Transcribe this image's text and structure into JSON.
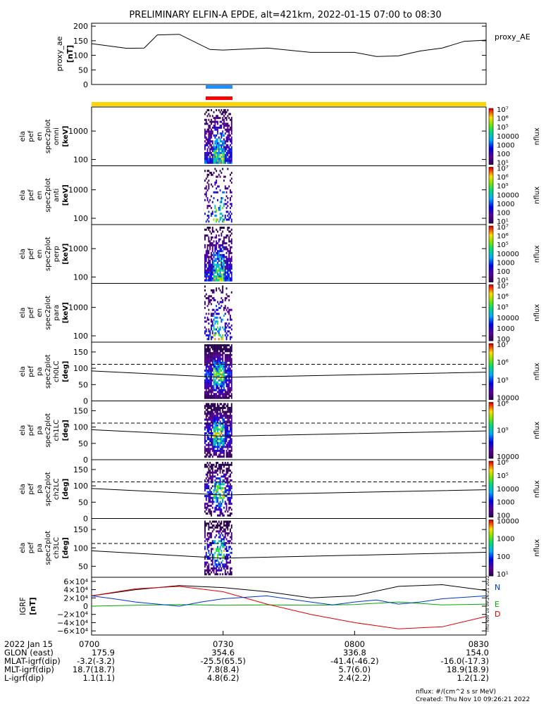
{
  "title": "PRELIMINARY ELFIN-A EPDE, alt=421km, 2022-01-15 07:00 to 08:30",
  "chart_data": {
    "type": "heatmap",
    "time_range": [
      "07:00",
      "08:30"
    ],
    "proxy_ae": {
      "ylabel": [
        "proxy_ae",
        "[nT]"
      ],
      "yticks": [
        0,
        50,
        100,
        150,
        200
      ],
      "ylim": [
        0,
        210
      ],
      "legend": "proxy_AE",
      "t_minutes": [
        0,
        8,
        12,
        15,
        20,
        27,
        30,
        40,
        50,
        60,
        65,
        70,
        75,
        80,
        85,
        90
      ],
      "values": [
        140,
        124,
        125,
        170,
        172,
        120,
        118,
        125,
        110,
        110,
        96,
        98,
        115,
        125,
        148,
        152
      ]
    },
    "science_zone_bars": [
      "#1e90ff",
      "#ff0000"
    ],
    "coverage_bar_color": "#ffd700",
    "spectrograms": [
      {
        "ylabel": [
          "ela",
          "pef",
          "en",
          "spec2plot",
          "omni",
          "[keV]"
        ],
        "scale": "log",
        "yticks": [
          100,
          1000
        ],
        "ylim": [
          60,
          7000
        ],
        "cbar_ticks": [
          10,
          100,
          1000,
          10000,
          100000,
          1000000,
          10000000
        ],
        "cbar_label": "nflux"
      },
      {
        "ylabel": [
          "ela",
          "pef",
          "en",
          "spec2plot",
          "anti",
          "[keV]"
        ],
        "scale": "log",
        "yticks": [
          100,
          1000
        ],
        "ylim": [
          60,
          7000
        ],
        "cbar_ticks": [
          10,
          100,
          1000,
          10000,
          100000,
          1000000,
          10000000
        ],
        "cbar_label": "nflux"
      },
      {
        "ylabel": [
          "ela",
          "pef",
          "en",
          "spec2plot",
          "perp",
          "[keV]"
        ],
        "scale": "log",
        "yticks": [
          100,
          1000
        ],
        "ylim": [
          60,
          7000
        ],
        "cbar_ticks": [
          10,
          100,
          1000,
          10000,
          100000,
          1000000,
          10000000
        ],
        "cbar_label": "nflux"
      },
      {
        "ylabel": [
          "ela",
          "pef",
          "en",
          "spec2plot",
          "para",
          "[keV]"
        ],
        "scale": "log",
        "yticks": [
          100,
          1000
        ],
        "ylim": [
          60,
          7000
        ],
        "cbar_ticks": [
          100,
          1000,
          10000,
          100000,
          1000000,
          10000000
        ],
        "cbar_label": "nflux"
      },
      {
        "ylabel": [
          "ela",
          "pef",
          "pa",
          "spec2plot",
          "ch0LC",
          "[deg]"
        ],
        "scale": "linear",
        "yticks": [
          0,
          50,
          100,
          150
        ],
        "ylim": [
          0,
          180
        ],
        "cbar_ticks": [
          10000,
          100000,
          1000000,
          10000000
        ],
        "cbar_label": "nflux",
        "solid_line": [
          92,
          72,
          88
        ],
        "dashed_line": [
          112,
          112,
          112
        ]
      },
      {
        "ylabel": [
          "ela",
          "pef",
          "pa",
          "spec2plot",
          "ch1LC",
          "[deg]"
        ],
        "scale": "linear",
        "yticks": [
          0,
          50,
          100,
          150
        ],
        "ylim": [
          0,
          180
        ],
        "cbar_ticks": [
          10000,
          100000,
          1000000
        ],
        "cbar_label": "nflux",
        "solid_line": [
          92,
          72,
          88
        ],
        "dashed_line": [
          112,
          112,
          112
        ]
      },
      {
        "ylabel": [
          "ela",
          "pef",
          "pa",
          "spec2plot",
          "ch2LC",
          "[deg]"
        ],
        "scale": "linear",
        "yticks": [
          0,
          50,
          100,
          150
        ],
        "ylim": [
          0,
          180
        ],
        "cbar_ticks": [
          100,
          1000,
          10000,
          100000,
          1000000
        ],
        "cbar_label": "nflux",
        "solid_line": [
          92,
          72,
          88
        ],
        "dashed_line": [
          112,
          112,
          112
        ]
      },
      {
        "ylabel": [
          "ela",
          "pef",
          "pa",
          "spec2plot",
          "ch3LC",
          "[deg]"
        ],
        "scale": "linear",
        "yticks": [
          50,
          100,
          150
        ],
        "ylim": [
          20,
          180
        ],
        "cbar_ticks": [
          10,
          100,
          1000,
          10000
        ],
        "cbar_label": "nflux",
        "solid_line": [
          92,
          72,
          88
        ],
        "dashed_line": [
          112,
          112,
          112
        ]
      }
    ],
    "igrf": {
      "ylabel": [
        "IGRF",
        "[nT]"
      ],
      "yticks": [
        -60000,
        -40000,
        -20000,
        0,
        20000,
        40000,
        60000
      ],
      "ytick_labels": [
        "−6×10⁴",
        "−4×10⁴",
        "−2×10⁴",
        "0",
        "2×10⁴",
        "4×10⁴",
        "6×10⁴"
      ],
      "ylim": [
        -70000,
        70000
      ],
      "series": [
        {
          "name": "N",
          "color": "#000000",
          "t_minutes": [
            0,
            10,
            20,
            30,
            40,
            50,
            60,
            70,
            80,
            90
          ],
          "values": [
            25000,
            40000,
            50000,
            45000,
            35000,
            20000,
            25000,
            48000,
            52000,
            38000
          ]
        },
        {
          "name": "E",
          "color": "#00aa00",
          "t_minutes": [
            0,
            10,
            20,
            30,
            40,
            50,
            60,
            70,
            80,
            90
          ],
          "values": [
            0,
            2000,
            4000,
            2000,
            3000,
            2000,
            4000,
            10000,
            3000,
            5000
          ]
        },
        {
          "name": "D",
          "color": "#dd0000",
          "t_minutes": [
            0,
            10,
            20,
            30,
            40,
            50,
            60,
            70,
            80,
            90
          ],
          "values": [
            25000,
            42000,
            48000,
            35000,
            5000,
            -20000,
            -40000,
            -55000,
            -50000,
            -25000
          ]
        },
        {
          "name": "blue",
          "color": "#0033cc",
          "t_minutes": [
            0,
            5,
            10,
            15,
            20,
            25,
            30,
            40,
            50,
            55,
            60,
            65,
            70,
            75,
            80,
            90
          ],
          "values": [
            25000,
            18000,
            10000,
            5000,
            0,
            10000,
            18000,
            25000,
            10000,
            3000,
            10000,
            15000,
            5000,
            10000,
            18000,
            25000
          ]
        }
      ],
      "side_note": "Thu Nov 10 09:26:21 2022"
    },
    "xaxis": {
      "tick_times": [
        "0700",
        "0730",
        "0800",
        "0830"
      ],
      "rows": [
        {
          "label": "2022 Jan 15",
          "values": [
            "",
            "",
            "",
            ""
          ]
        },
        {
          "label": "GLON (east)",
          "values": [
            "175.9",
            "354.6",
            "336.8",
            "154.0"
          ]
        },
        {
          "label": "MLAT-igrf(dip)",
          "values": [
            "-3.2(-3.2)",
            "-25.5(65.5)",
            "-41.4(-46.2)",
            "-16.0(-17.3)"
          ]
        },
        {
          "label": "MLT-igrf(dip)",
          "values": [
            "18.7(18.7)",
            "7.8(8.4)",
            "5.7(6.0)",
            "18.9(18.9)"
          ]
        },
        {
          "label": "L-igrf(dip)",
          "values": [
            "1.1(1.1)",
            "4.8(6.2)",
            "2.4(2.2)",
            "1.2(1.2)"
          ]
        }
      ]
    },
    "footer": [
      "nflux: #/(cm^2 s sr MeV)",
      "Created: Thu Nov 10 09:26:21 2022"
    ]
  }
}
